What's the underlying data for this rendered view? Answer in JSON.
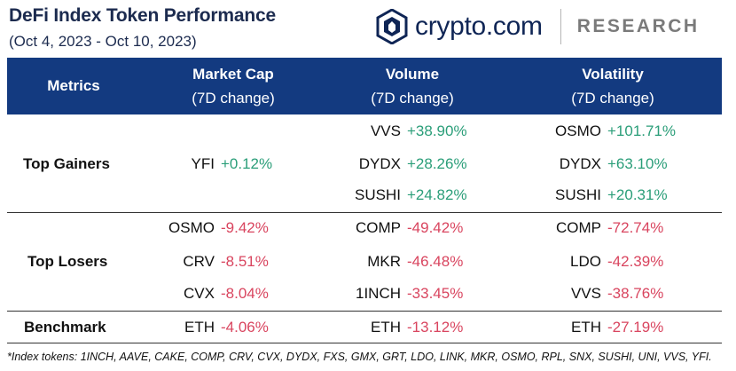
{
  "title": "DeFi Index Token Performance",
  "subtitle": "(Oct 4, 2023 - Oct 10, 2023)",
  "logo": {
    "brand": "crypto.com",
    "division": "RESEARCH",
    "icon": "cryptocom-lion-shield-icon",
    "brand_color": "#0f2555"
  },
  "colors": {
    "header_bg": "#133a80",
    "positive": "#2b9e79",
    "negative": "#d9455f"
  },
  "headers": {
    "metrics": "Metrics",
    "market_cap": {
      "line1": "Market Cap",
      "line2": "(7D change)"
    },
    "volume": {
      "line1": "Volume",
      "line2": "(7D change)"
    },
    "volatility": {
      "line1": "Volatility",
      "line2": "(7D change)"
    }
  },
  "rows": {
    "top_gainers": {
      "label": "Top Gainers",
      "market_cap": [
        {
          "token": "YFI",
          "change": "+0.12%"
        }
      ],
      "volume": [
        {
          "token": "VVS",
          "change": "+38.90%"
        },
        {
          "token": "DYDX",
          "change": "+28.26%"
        },
        {
          "token": "SUSHI",
          "change": "+24.82%"
        }
      ],
      "volatility": [
        {
          "token": "OSMO",
          "change": "+101.71%"
        },
        {
          "token": "DYDX",
          "change": "+63.10%"
        },
        {
          "token": "SUSHI",
          "change": "+20.31%"
        }
      ]
    },
    "top_losers": {
      "label": "Top Losers",
      "market_cap": [
        {
          "token": "OSMO",
          "change": "-9.42%"
        },
        {
          "token": "CRV",
          "change": "-8.51%"
        },
        {
          "token": "CVX",
          "change": "-8.04%"
        }
      ],
      "volume": [
        {
          "token": "COMP",
          "change": "-49.42%"
        },
        {
          "token": "MKR",
          "change": "-46.48%"
        },
        {
          "token": "1INCH",
          "change": "-33.45%"
        }
      ],
      "volatility": [
        {
          "token": "COMP",
          "change": "-72.74%"
        },
        {
          "token": "LDO",
          "change": "-42.39%"
        },
        {
          "token": "VVS",
          "change": "-38.76%"
        }
      ]
    },
    "benchmark": {
      "label": "Benchmark",
      "market_cap": [
        {
          "token": "ETH",
          "change": "-4.06%"
        }
      ],
      "volume": [
        {
          "token": "ETH",
          "change": "-13.12%"
        }
      ],
      "volatility": [
        {
          "token": "ETH",
          "change": "-27.19%"
        }
      ]
    }
  },
  "footnote": "*Index tokens: 1INCH, AAVE, CAKE, COMP, CRV, CVX, DYDX, FXS, GMX, GRT, LDO, LINK, MKR, OSMO, RPL, SNX, SUSHI, UNI, VVS, YFI."
}
